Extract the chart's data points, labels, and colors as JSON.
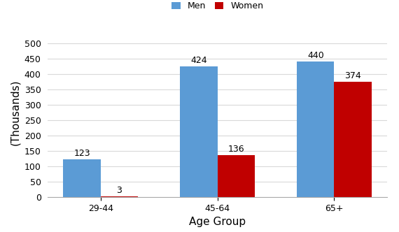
{
  "categories": [
    "29-44",
    "45-64",
    "65+"
  ],
  "men_values": [
    123,
    424,
    440
  ],
  "women_values": [
    3,
    136,
    374
  ],
  "men_color": "#5B9BD5",
  "women_color": "#C00000",
  "xlabel": "Age Group",
  "ylabel": "(Thousands)",
  "ylim": [
    0,
    550
  ],
  "yticks": [
    0,
    50,
    100,
    150,
    200,
    250,
    300,
    350,
    400,
    450,
    500
  ],
  "legend_labels": [
    "Men",
    "Women"
  ],
  "bar_width": 0.32,
  "annotation_fontsize": 9,
  "axis_label_fontsize": 11,
  "tick_fontsize": 9,
  "legend_fontsize": 9,
  "background_color": "#FFFFFF",
  "grid_color": "#D9D9D9"
}
